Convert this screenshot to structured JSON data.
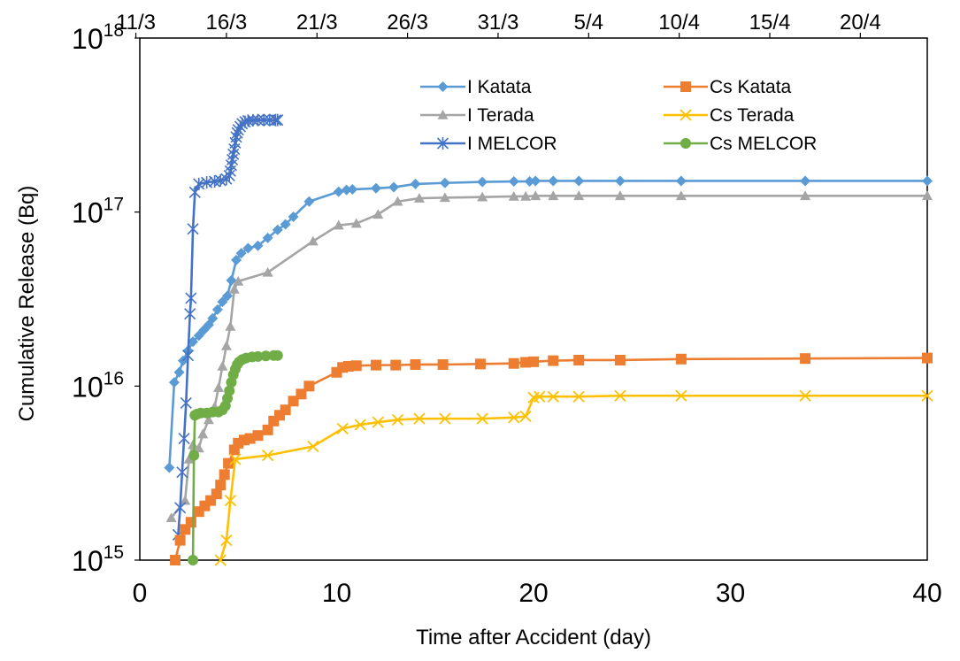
{
  "chart_data": {
    "type": "line",
    "xlabel": "Time after Accident (day)",
    "ylabel": "Cumulative Release (Bq)",
    "xlim": [
      0,
      40
    ],
    "ylim": [
      1000000000000000.0,
      1e+18
    ],
    "y_scale": "log",
    "grid": false,
    "legend_position": "top-right, inside plot",
    "x_ticks": [
      0,
      10,
      20,
      30,
      40
    ],
    "y_ticks": [
      {
        "value": 1000000000000000.0,
        "base": "10",
        "exp": "15"
      },
      {
        "value": 1e+16,
        "base": "10",
        "exp": "16"
      },
      {
        "value": 1e+17,
        "base": "10",
        "exp": "17"
      },
      {
        "value": 1e+18,
        "base": "10",
        "exp": "18"
      }
    ],
    "top_axis_ticks": [
      {
        "x": -0.2,
        "label": "11/3"
      },
      {
        "x": 4.4,
        "label": "16/3"
      },
      {
        "x": 9.0,
        "label": "21/3"
      },
      {
        "x": 13.6,
        "label": "26/3"
      },
      {
        "x": 18.2,
        "label": "31/3"
      },
      {
        "x": 22.8,
        "label": "5/4"
      },
      {
        "x": 27.4,
        "label": "10/4"
      },
      {
        "x": 32.0,
        "label": "15/4"
      },
      {
        "x": 36.6,
        "label": "20/4"
      }
    ],
    "series": [
      {
        "name": "I Katata",
        "color": "#5B9BD5",
        "marker": "diamond",
        "x": [
          1.5,
          1.75,
          2.0,
          2.2,
          2.45,
          2.7,
          3.0,
          3.25,
          3.5,
          3.7,
          3.95,
          4.2,
          4.45,
          4.65,
          4.9,
          5.15,
          5.5,
          6.0,
          6.5,
          7.0,
          7.4,
          7.8,
          8.6,
          10.1,
          10.5,
          10.8,
          12.0,
          12.9,
          14.0,
          15.5,
          17.4,
          19.0,
          19.8,
          20.1,
          21.0,
          22.3,
          24.4,
          27.5,
          33.8,
          40.0
        ],
        "y": [
          3400000000000000.0,
          1.05e+16,
          1.2e+16,
          1.4e+16,
          1.6e+16,
          1.8e+16,
          1.95e+16,
          2.1e+16,
          2.25e+16,
          2.45e+16,
          2.75e+16,
          3.05e+16,
          3.3e+16,
          4.05e+16,
          5.3e+16,
          5.8e+16,
          6.2e+16,
          6.4e+16,
          7.1e+16,
          7.9e+16,
          8.5e+16,
          9.4e+16,
          1.15e+17,
          1.31e+17,
          1.34e+17,
          1.35e+17,
          1.37e+17,
          1.39e+17,
          1.45e+17,
          1.47e+17,
          1.49e+17,
          1.5e+17,
          1.5e+17,
          1.51e+17,
          1.51e+17,
          1.51e+17,
          1.51e+17,
          1.51e+17,
          1.51e+17,
          1.51e+17
        ]
      },
      {
        "name": "I Terada",
        "color": "#A5A5A5",
        "marker": "triangle",
        "x": [
          1.6,
          2.3,
          2.5,
          2.7,
          3.0,
          3.2,
          3.5,
          3.8,
          4.0,
          4.2,
          4.4,
          4.6,
          4.8,
          5.0,
          6.5,
          8.8,
          10.1,
          11.0,
          12.1,
          13.1,
          14.2,
          15.5,
          17.4,
          19.0,
          19.6,
          20.1,
          21.0,
          22.3,
          24.4,
          27.5,
          33.8,
          40.0
        ],
        "y": [
          1750000000000000.0,
          2200000000000000.0,
          3800000000000000.0,
          4600000000000000.0,
          4400000000000000.0,
          5300000000000000.0,
          6400000000000000.0,
          7600000000000000.0,
          9800000000000000.0,
          1.3e+16,
          1.7e+16,
          2.2e+16,
          3.6e+16,
          4e+16,
          4.5e+16,
          6.8e+16,
          8.4e+16,
          8.6e+16,
          9.7e+16,
          1.15e+17,
          1.2e+17,
          1.21e+17,
          1.22e+17,
          1.23e+17,
          1.23e+17,
          1.24e+17,
          1.24e+17,
          1.24e+17,
          1.24e+17,
          1.24e+17,
          1.24e+17,
          1.24e+17
        ]
      },
      {
        "name": "I MELCOR",
        "color": "#4472C4",
        "marker": "star",
        "x": [
          1.95,
          2.05,
          2.15,
          2.25,
          2.35,
          2.45,
          2.55,
          2.6,
          2.7,
          2.8,
          3.0,
          3.4,
          3.8,
          4.1,
          4.4,
          4.55,
          4.6,
          4.65,
          4.7,
          4.75,
          4.8,
          4.85,
          4.9,
          4.95,
          5.0,
          5.1,
          5.2,
          5.35,
          5.5,
          5.75,
          6.0,
          6.3,
          6.6,
          6.9,
          7.0
        ],
        "y": [
          1400000000000000.0,
          2000000000000000.0,
          3200000000000000.0,
          5000000000000000.0,
          8000000000000000.0,
          1.5e+16,
          2.6e+16,
          3.2e+16,
          8e+16,
          1.3e+17,
          1.45e+17,
          1.48e+17,
          1.5e+17,
          1.52e+17,
          1.55e+17,
          1.62e+17,
          1.72e+17,
          1.86e+17,
          2e+17,
          2.15e+17,
          2.3e+17,
          2.5e+17,
          2.7e+17,
          2.85e+17,
          2.97e+17,
          3.1e+17,
          3.22e+17,
          3.3e+17,
          3.35e+17,
          3.37e+17,
          3.38e+17,
          3.38e+17,
          3.38e+17,
          3.38e+17,
          3.38e+17
        ]
      },
      {
        "name": "Cs Katata",
        "color": "#ED7D31",
        "marker": "square",
        "x": [
          1.8,
          2.05,
          2.3,
          2.6,
          3.0,
          3.3,
          3.6,
          3.9,
          4.1,
          4.3,
          4.5,
          4.8,
          5.0,
          5.3,
          5.6,
          6.0,
          6.5,
          6.8,
          7.1,
          7.4,
          7.8,
          8.2,
          8.6,
          10.0,
          10.3,
          10.6,
          11.0,
          12.0,
          13.0,
          14.0,
          15.4,
          17.3,
          19.0,
          19.6,
          20.0,
          21.0,
          22.3,
          24.4,
          27.5,
          33.8,
          40.0
        ],
        "y": [
          1000000000000000.0,
          1300000000000000.0,
          1500000000000000.0,
          1650000000000000.0,
          1900000000000000.0,
          2050000000000000.0,
          2200000000000000.0,
          2400000000000000.0,
          2700000000000000.0,
          3100000000000000.0,
          3600000000000000.0,
          4300000000000000.0,
          4700000000000000.0,
          4900000000000000.0,
          5000000000000000.0,
          5200000000000000.0,
          5600000000000000.0,
          6300000000000000.0,
          6800000000000000.0,
          7300000000000000.0,
          8200000000000000.0,
          9000000000000000.0,
          1e+16,
          1.2e+16,
          1.28e+16,
          1.3e+16,
          1.31e+16,
          1.32e+16,
          1.32e+16,
          1.33e+16,
          1.33e+16,
          1.34e+16,
          1.35e+16,
          1.37e+16,
          1.38e+16,
          1.4e+16,
          1.41e+16,
          1.41e+16,
          1.43e+16,
          1.44e+16,
          1.45e+16
        ]
      },
      {
        "name": "Cs Terada",
        "color": "#FFC000",
        "marker": "x",
        "x": [
          4.1,
          4.4,
          4.6,
          4.85,
          6.5,
          8.8,
          10.3,
          11.2,
          12.1,
          13.1,
          14.2,
          15.5,
          17.4,
          19.0,
          19.6,
          20.0,
          20.3,
          21.0,
          22.3,
          24.4,
          27.5,
          33.8,
          40.0
        ],
        "y": [
          1000000000000000.0,
          1300000000000000.0,
          2200000000000000.0,
          3800000000000000.0,
          4000000000000000.0,
          4500000000000000.0,
          5700000000000000.0,
          6000000000000000.0,
          6200000000000000.0,
          6400000000000000.0,
          6500000000000000.0,
          6500000000000000.0,
          6500000000000000.0,
          6600000000000000.0,
          6700000000000000.0,
          8600000000000000.0,
          8700000000000000.0,
          8700000000000000.0,
          8700000000000000.0,
          8800000000000000.0,
          8800000000000000.0,
          8800000000000000.0,
          8800000000000000.0
        ]
      },
      {
        "name": "Cs MELCOR",
        "color": "#70AD47",
        "marker": "circle",
        "x": [
          2.7,
          2.75,
          2.8,
          2.9,
          3.1,
          3.4,
          3.7,
          4.0,
          4.2,
          4.35,
          4.45,
          4.55,
          4.65,
          4.75,
          4.85,
          4.95,
          5.05,
          5.2,
          5.4,
          5.7,
          6.0,
          6.4,
          6.8,
          7.0
        ],
        "y": [
          1000000000000000.0,
          4000000000000000.0,
          6800000000000000.0,
          6900000000000000.0,
          7000000000000000.0,
          7000000000000000.0,
          7100000000000000.0,
          7100000000000000.0,
          7300000000000000.0,
          7700000000000000.0,
          8500000000000000.0,
          9400000000000000.0,
          1.05e+16,
          1.16e+16,
          1.25e+16,
          1.33e+16,
          1.38e+16,
          1.42e+16,
          1.45e+16,
          1.47e+16,
          1.48e+16,
          1.49e+16,
          1.5e+16,
          1.5e+16
        ]
      }
    ]
  }
}
